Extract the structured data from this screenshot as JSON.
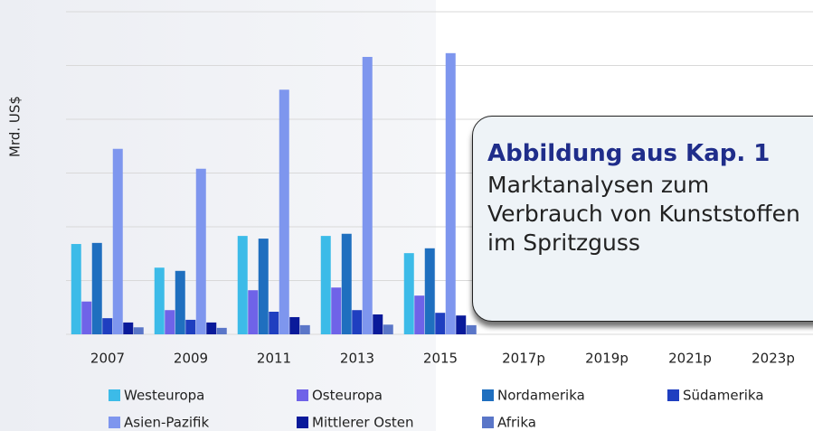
{
  "chart_data": {
    "type": "bar",
    "ylabel": "Mrd. US$",
    "categories": [
      "2007",
      "2009",
      "2011",
      "2013",
      "2015",
      "2017p",
      "2019p",
      "2021p",
      "2023p"
    ],
    "series": [
      {
        "name": "Westeuropa",
        "color": "#3cbbe8",
        "values": [
          1.68,
          1.24,
          1.83,
          1.83,
          1.51,
          null,
          null,
          null,
          null
        ]
      },
      {
        "name": "Osteuropa",
        "color": "#6f63e8",
        "values": [
          0.61,
          0.45,
          0.82,
          0.87,
          0.72,
          null,
          null,
          null,
          null
        ]
      },
      {
        "name": "Nordamerika",
        "color": "#1f6fbf",
        "values": [
          1.7,
          1.18,
          1.78,
          1.87,
          1.6,
          null,
          null,
          null,
          null
        ]
      },
      {
        "name": "Südamerika",
        "color": "#1f3fc0",
        "values": [
          0.3,
          0.27,
          0.42,
          0.45,
          0.4,
          null,
          null,
          null,
          null
        ]
      },
      {
        "name": "Asien-Pazifik",
        "color": "#7e96ee",
        "values": [
          3.45,
          3.08,
          4.55,
          5.16,
          5.23,
          null,
          null,
          null,
          null
        ]
      },
      {
        "name": "Mittlerer Osten",
        "color": "#0a1a9a",
        "values": [
          0.22,
          0.22,
          0.32,
          0.37,
          0.35,
          null,
          null,
          null,
          null
        ]
      },
      {
        "name": "Afrika",
        "color": "#5a76c8",
        "values": [
          0.13,
          0.12,
          0.17,
          0.18,
          0.17,
          null,
          null,
          null,
          null
        ]
      }
    ],
    "ylim": [
      0,
      6
    ],
    "yticks": [
      0,
      1,
      2,
      3,
      4,
      5,
      6
    ],
    "grid": true,
    "legend": "bottom"
  },
  "callout": {
    "title": "Abbildung aus Kap. 1",
    "lines": [
      "Marktanalysen zum",
      "Verbrauch von Kunststoffen",
      "im Spritzguss"
    ]
  }
}
